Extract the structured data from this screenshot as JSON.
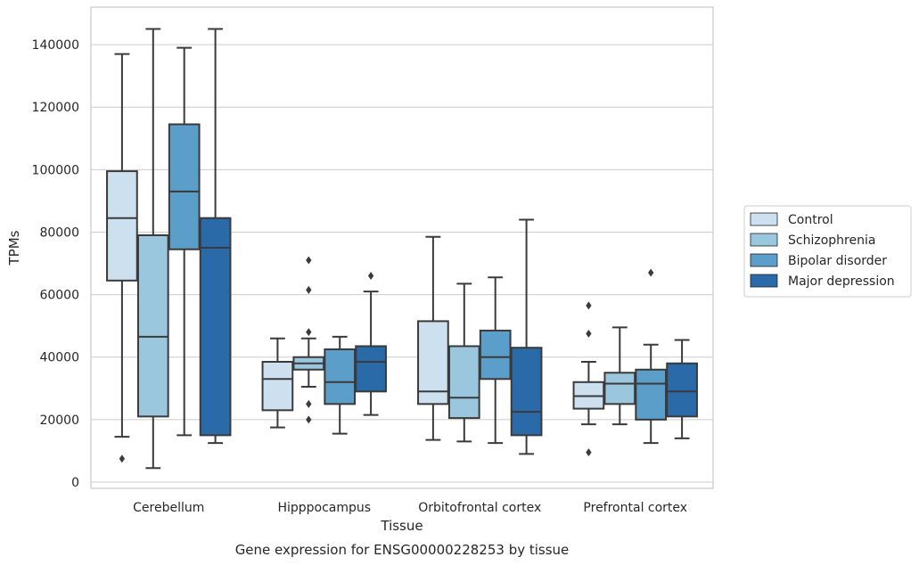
{
  "chart_data": {
    "type": "box",
    "title": "",
    "caption": "Gene expression for ENSG00000228253 by tissue",
    "xlabel": "Tissue",
    "ylabel": "TPMs",
    "ylim": [
      -2000,
      152000
    ],
    "yticks": [
      0,
      20000,
      40000,
      60000,
      80000,
      100000,
      120000,
      140000
    ],
    "grid": "horizontal",
    "legend_position": "right",
    "categories": [
      "Cerebellum",
      "Hipppocampus",
      "Orbitofrontal cortex",
      "Prefrontal cortex"
    ],
    "series": [
      {
        "name": "Control",
        "color": "#cde0f0",
        "boxes": [
          {
            "whisker_low": 14500,
            "q1": 64500,
            "median": 84500,
            "q3": 99500,
            "whisker_high": 137000,
            "outliers": [
              7500
            ]
          },
          {
            "whisker_low": 17500,
            "q1": 23000,
            "median": 33000,
            "q3": 38500,
            "whisker_high": 46000,
            "outliers": []
          },
          {
            "whisker_low": 13500,
            "q1": 25000,
            "median": 29000,
            "q3": 51500,
            "whisker_high": 78500,
            "outliers": []
          },
          {
            "whisker_low": 18500,
            "q1": 23500,
            "median": 27500,
            "q3": 32000,
            "whisker_high": 38500,
            "outliers": [
              56500,
              47500,
              9500
            ]
          }
        ]
      },
      {
        "name": "Schizophrenia",
        "color": "#9ac6de",
        "boxes": [
          {
            "whisker_low": 4500,
            "q1": 21000,
            "median": 46500,
            "q3": 79000,
            "whisker_high": 145000,
            "outliers": []
          },
          {
            "whisker_low": 30500,
            "q1": 36000,
            "median": 38000,
            "q3": 40000,
            "whisker_high": 46000,
            "outliers": [
              71000,
              61500,
              48000,
              25000,
              20000
            ]
          },
          {
            "whisker_low": 13000,
            "q1": 20500,
            "median": 27000,
            "q3": 43500,
            "whisker_high": 63500,
            "outliers": []
          },
          {
            "whisker_low": 18500,
            "q1": 25000,
            "median": 31500,
            "q3": 35000,
            "whisker_high": 49500,
            "outliers": []
          }
        ]
      },
      {
        "name": "Bipolar disorder",
        "color": "#5b9ec9",
        "boxes": [
          {
            "whisker_low": 15000,
            "q1": 74500,
            "median": 93000,
            "q3": 114500,
            "whisker_high": 139000,
            "outliers": []
          },
          {
            "whisker_low": 15500,
            "q1": 25000,
            "median": 32000,
            "q3": 42500,
            "whisker_high": 46500,
            "outliers": []
          },
          {
            "whisker_low": 12500,
            "q1": 33000,
            "median": 40000,
            "q3": 48500,
            "whisker_high": 65500,
            "outliers": []
          },
          {
            "whisker_low": 12500,
            "q1": 20000,
            "median": 31500,
            "q3": 36000,
            "whisker_high": 44000,
            "outliers": [
              67000
            ]
          }
        ]
      },
      {
        "name": "Major depression",
        "color": "#2a6aa9",
        "boxes": [
          {
            "whisker_low": 12500,
            "q1": 15000,
            "median": 75000,
            "q3": 84500,
            "whisker_high": 145000,
            "outliers": []
          },
          {
            "whisker_low": 21500,
            "q1": 29000,
            "median": 38500,
            "q3": 43500,
            "whisker_high": 61000,
            "outliers": [
              66000
            ]
          },
          {
            "whisker_low": 9000,
            "q1": 15000,
            "median": 22500,
            "q3": 43000,
            "whisker_high": 84000,
            "outliers": []
          },
          {
            "whisker_low": 14000,
            "q1": 21000,
            "median": 29000,
            "q3": 38000,
            "whisker_high": 45500,
            "outliers": []
          }
        ]
      }
    ]
  }
}
